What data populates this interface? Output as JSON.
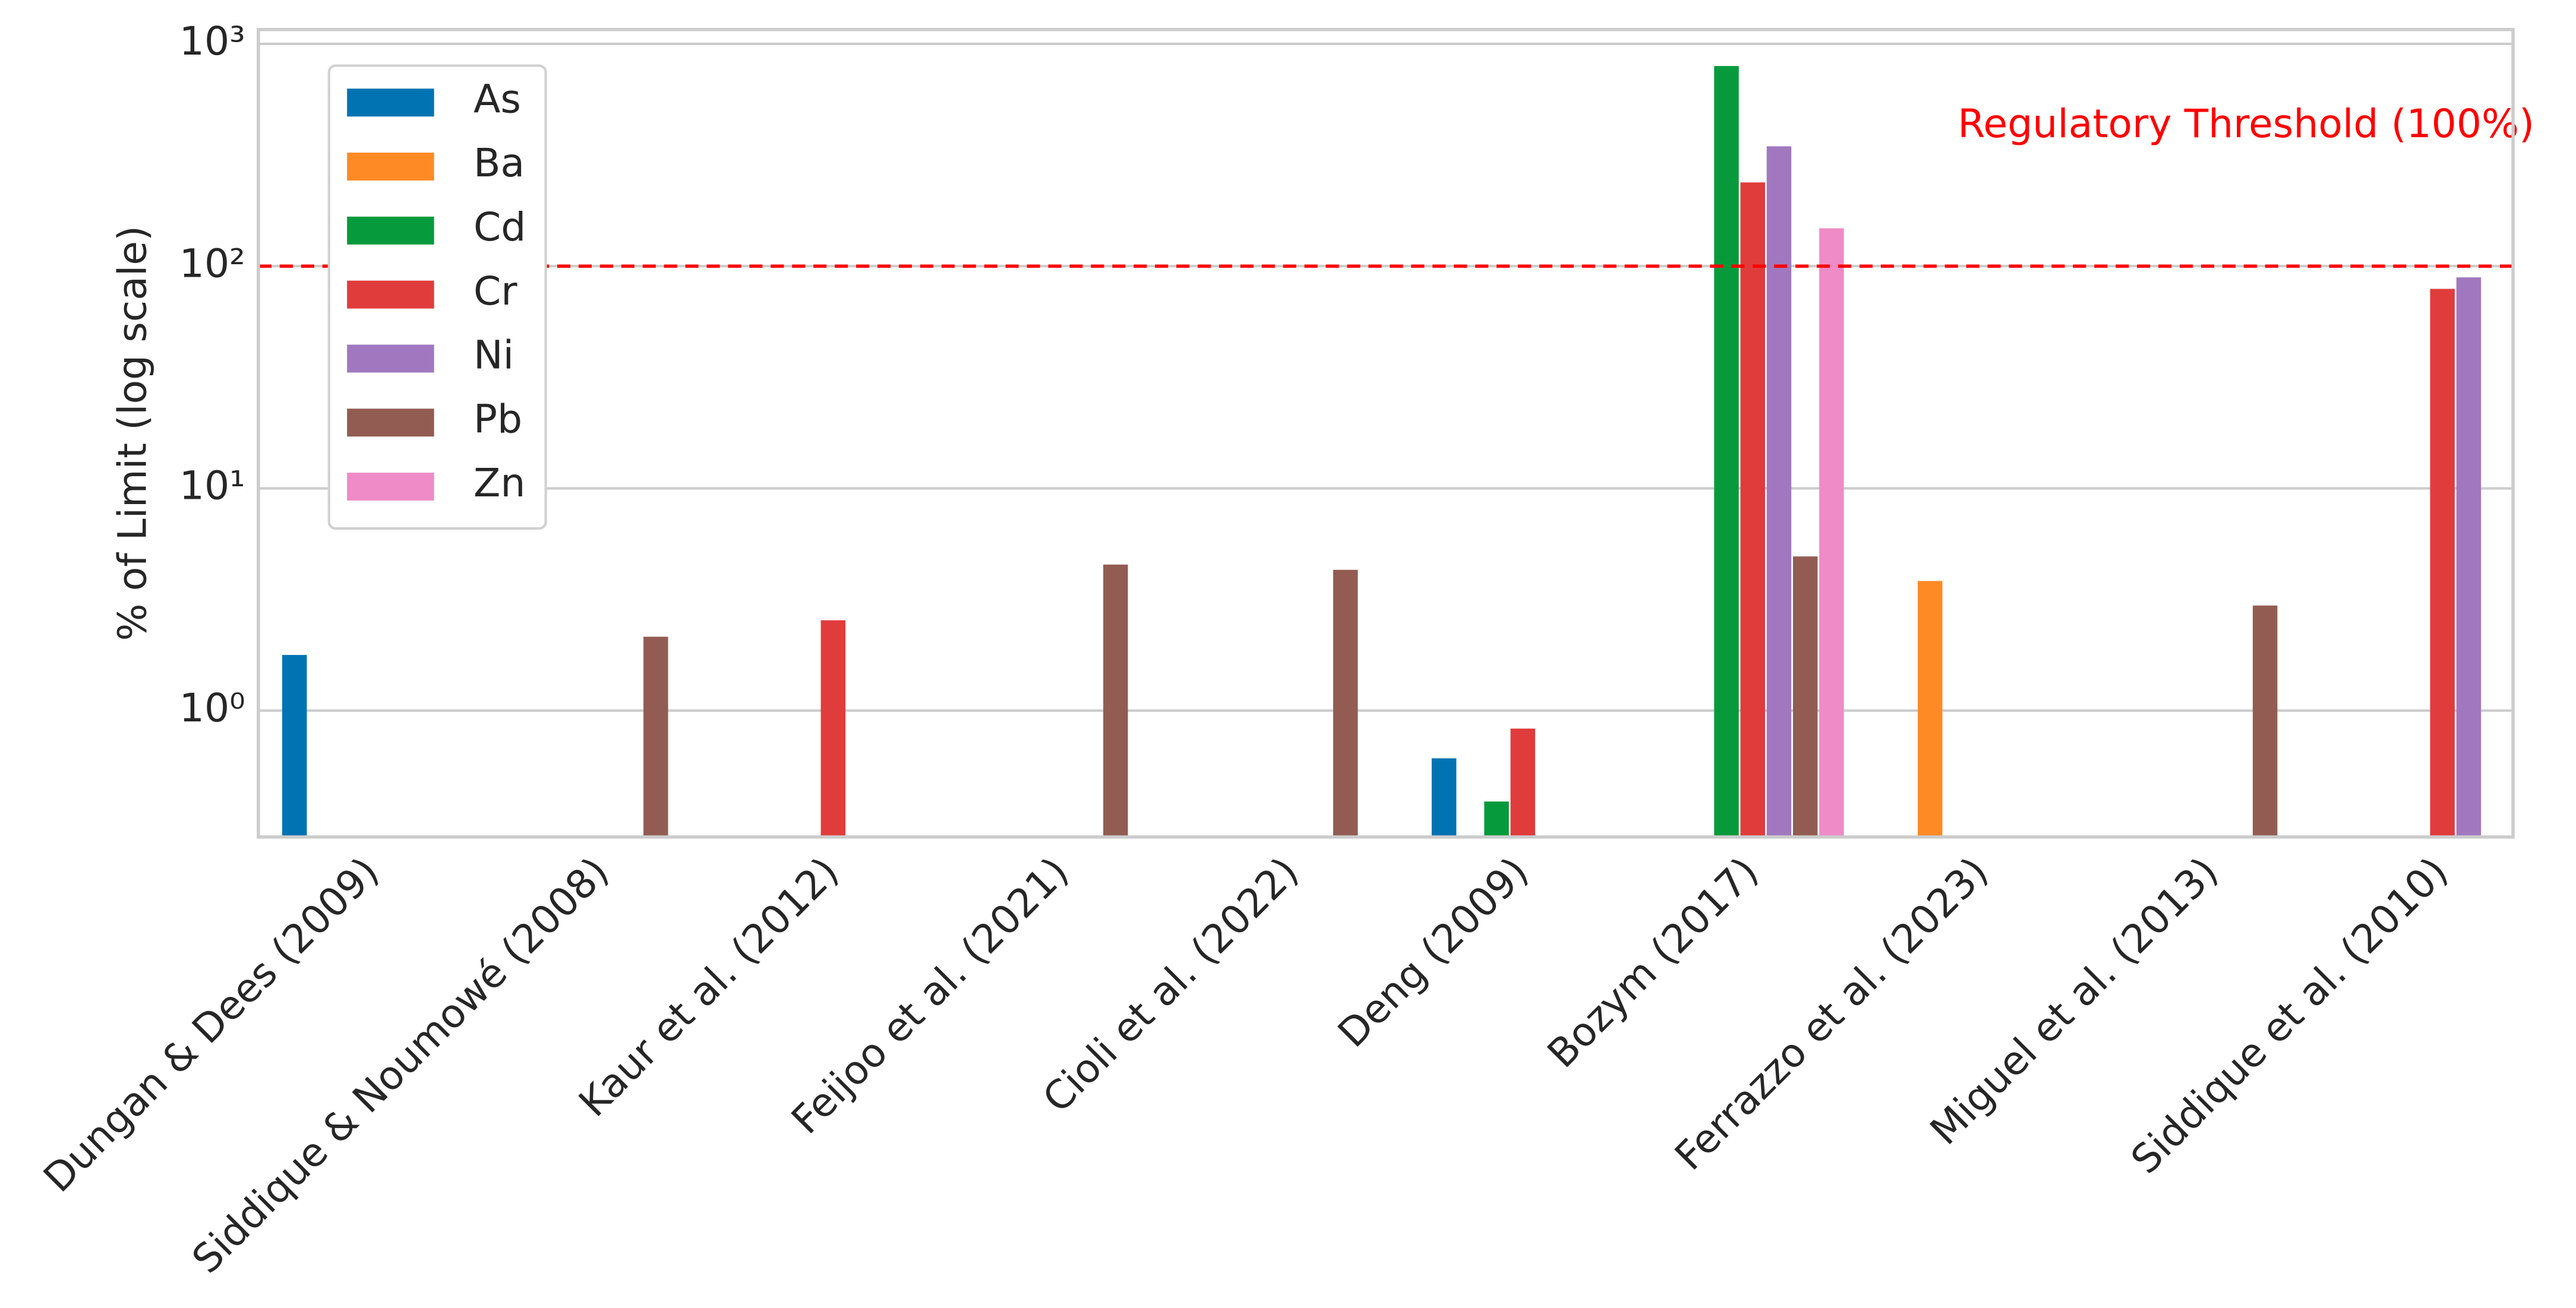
{
  "chart_data": {
    "type": "bar",
    "ylabel": "% of Limit (log scale)",
    "log_scale": true,
    "grid": true,
    "legend": "upper left",
    "categories": [
      "Dungan & Dees (2009)",
      "Siddique & Noumowé (2008)",
      "Kaur et al. (2012)",
      "Feijoo et al. (2021)",
      "Cioli et al. (2022)",
      "Deng (2009)",
      "Bozym (2017)",
      "Ferrazzo et al. (2023)",
      "Miguel et al. (2013)",
      "Siddique et al. (2010)"
    ],
    "series": [
      {
        "name": "As",
        "color": "#0173b2",
        "values": [
          1.78,
          null,
          null,
          null,
          null,
          0.61,
          null,
          null,
          null,
          null
        ]
      },
      {
        "name": "Ba",
        "color": "#fe8a26",
        "values": [
          null,
          null,
          null,
          null,
          null,
          null,
          null,
          3.83,
          null,
          null
        ]
      },
      {
        "name": "Cd",
        "color": "#079a3c",
        "values": [
          null,
          null,
          null,
          null,
          null,
          0.39,
          795,
          null,
          null,
          null
        ]
      },
      {
        "name": "Cr",
        "color": "#e03c3c",
        "values": [
          null,
          null,
          2.55,
          null,
          null,
          0.83,
          238,
          null,
          null,
          79
        ]
      },
      {
        "name": "Ni",
        "color": "#a178bf",
        "values": [
          null,
          null,
          null,
          null,
          null,
          null,
          346,
          null,
          null,
          89
        ]
      },
      {
        "name": "Pb",
        "color": "#925c52",
        "values": [
          null,
          2.15,
          null,
          4.54,
          4.3,
          null,
          4.94,
          null,
          2.97,
          null
        ]
      },
      {
        "name": "Zn",
        "color": "#ef8bc6",
        "values": [
          null,
          null,
          null,
          null,
          null,
          null,
          148,
          null,
          null,
          null
        ]
      }
    ],
    "ylim": [
      0.27,
      1160
    ],
    "yticks": [
      {
        "value": 1,
        "label": "10⁰"
      },
      {
        "value": 10,
        "label": "10¹"
      },
      {
        "value": 100,
        "label": "10²"
      },
      {
        "value": 1000,
        "label": "10³"
      }
    ],
    "threshold": {
      "value": 100,
      "label": "Regulatory Threshold (100%)",
      "color": "#ff0000"
    }
  }
}
